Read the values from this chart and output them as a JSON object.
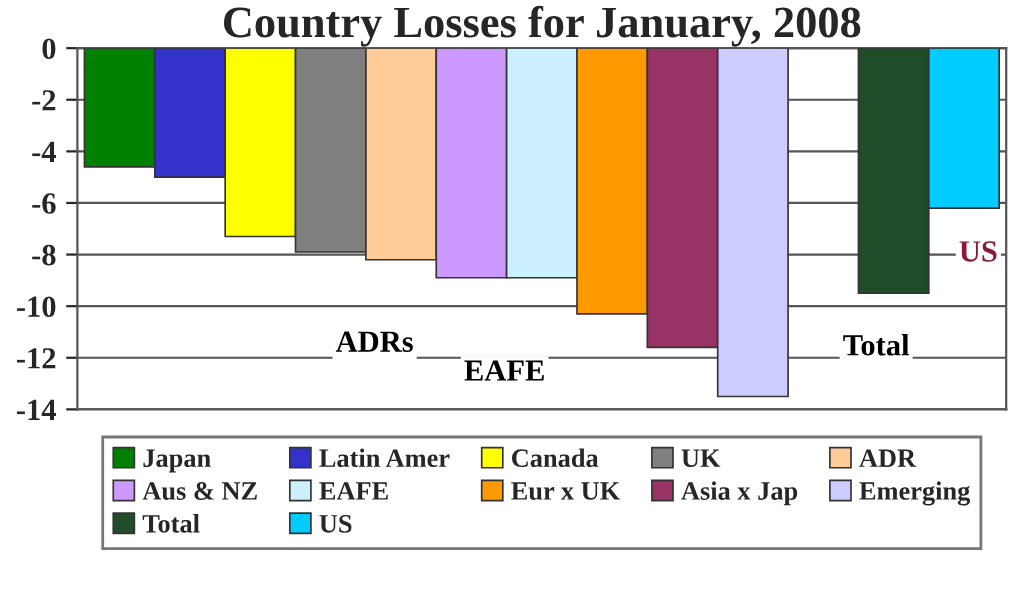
{
  "chart_data": {
    "type": "bar",
    "title": "Country Losses for January, 2008",
    "categories": [
      null,
      null,
      null,
      null,
      null,
      null,
      null,
      null,
      null,
      null,
      null,
      null,
      null
    ],
    "series": [
      {
        "name": "Japan",
        "color": "#008000",
        "values": [
          -4.6,
          null,
          null,
          null,
          null,
          null,
          null,
          null,
          null,
          null,
          null,
          null,
          null
        ]
      },
      {
        "name": "Latin Amer",
        "color": "#3333cc",
        "values": [
          null,
          -5.0,
          null,
          null,
          null,
          null,
          null,
          null,
          null,
          null,
          null,
          null,
          null
        ]
      },
      {
        "name": "Canada",
        "color": "#ffff00",
        "values": [
          null,
          null,
          -7.3,
          null,
          null,
          null,
          null,
          null,
          null,
          null,
          null,
          null,
          null
        ]
      },
      {
        "name": "UK",
        "color": "#808080",
        "values": [
          null,
          null,
          null,
          -7.9,
          null,
          null,
          null,
          null,
          null,
          null,
          null,
          null,
          null
        ]
      },
      {
        "name": "ADR",
        "color": "#ffcc99",
        "values": [
          null,
          null,
          null,
          null,
          -8.2,
          null,
          null,
          null,
          null,
          null,
          null,
          null,
          null
        ]
      },
      {
        "name": "Aus & NZ",
        "color": "#cc99ff",
        "values": [
          null,
          null,
          null,
          null,
          null,
          -8.9,
          null,
          null,
          null,
          null,
          null,
          null,
          null
        ]
      },
      {
        "name": "EAFE",
        "color": "#ccf0ff",
        "values": [
          null,
          null,
          null,
          null,
          null,
          null,
          -8.9,
          null,
          null,
          null,
          null,
          null,
          null
        ]
      },
      {
        "name": "Eur x UK",
        "color": "#ff9900",
        "values": [
          null,
          null,
          null,
          null,
          null,
          null,
          null,
          -10.3,
          null,
          null,
          null,
          null,
          null
        ]
      },
      {
        "name": "Asia x Jap",
        "color": "#993366",
        "values": [
          null,
          null,
          null,
          null,
          null,
          null,
          null,
          null,
          -11.6,
          null,
          null,
          null,
          null
        ]
      },
      {
        "name": "Emerging",
        "color": "#ccccff",
        "values": [
          null,
          null,
          null,
          null,
          null,
          null,
          null,
          null,
          null,
          -13.5,
          null,
          null,
          null
        ]
      },
      {
        "name": "Total",
        "color": "#1f4d2a",
        "values": [
          null,
          null,
          null,
          null,
          null,
          null,
          null,
          null,
          null,
          null,
          null,
          -9.5,
          null
        ]
      },
      {
        "name": "US",
        "color": "#00ccff",
        "values": [
          null,
          null,
          null,
          null,
          null,
          null,
          null,
          null,
          null,
          null,
          null,
          null,
          -6.2
        ]
      }
    ],
    "ylim": [
      -14,
      0
    ],
    "yticks": [
      0,
      -2,
      -4,
      -6,
      -8,
      -10,
      -12,
      -14
    ],
    "grid": "y",
    "legend": "bottom",
    "tick_labels": "y",
    "annotations": [
      "ADRs",
      "EAFE",
      "Total",
      "US"
    ]
  }
}
